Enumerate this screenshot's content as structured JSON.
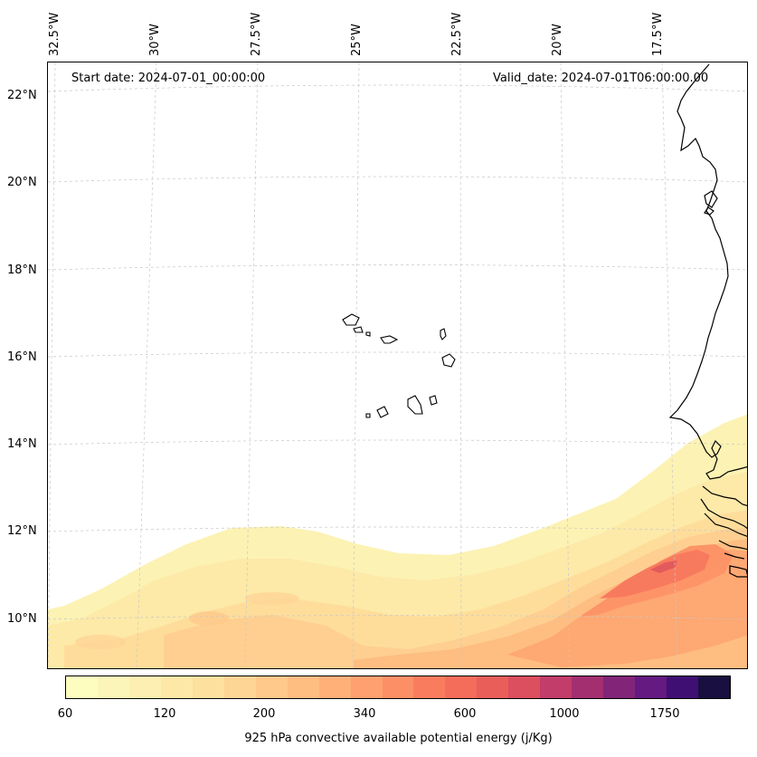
{
  "map": {
    "start_date": "Start date: 2024-07-01_00:00:00",
    "valid_date": "Valid_date: 2024-07-01T06:00:00.00",
    "longitude_labels": [
      "32.5°W",
      "30°W",
      "27.5°W",
      "25°W",
      "22.5°W",
      "20°W",
      "17.5°W"
    ],
    "latitude_labels": [
      "22°N",
      "20°N",
      "18°N",
      "16°N",
      "14°N",
      "12°N",
      "10°N"
    ],
    "field_variable": "925 hPa convective available potential energy",
    "region": "Eastern tropical Atlantic, Cape Verde islands and West African coast"
  },
  "colorbar": {
    "label": "925 hPa convective available potential energy (j/Kg)",
    "tick_labels": [
      "60",
      "120",
      "200",
      "340",
      "600",
      "1000",
      "1750"
    ],
    "colors": [
      "#fcfdbf",
      "#fcf5b9",
      "#fcefb1",
      "#fde8a7",
      "#fde09e",
      "#fed595",
      "#fec98b",
      "#febd81",
      "#feb078",
      "#fea06f",
      "#fd8f66",
      "#fa7c5e",
      "#f46c5a",
      "#ea5e5a",
      "#db4f5f",
      "#c23d69",
      "#a32f70",
      "#822578",
      "#641a80",
      "#400f73",
      "#190f40"
    ]
  }
}
